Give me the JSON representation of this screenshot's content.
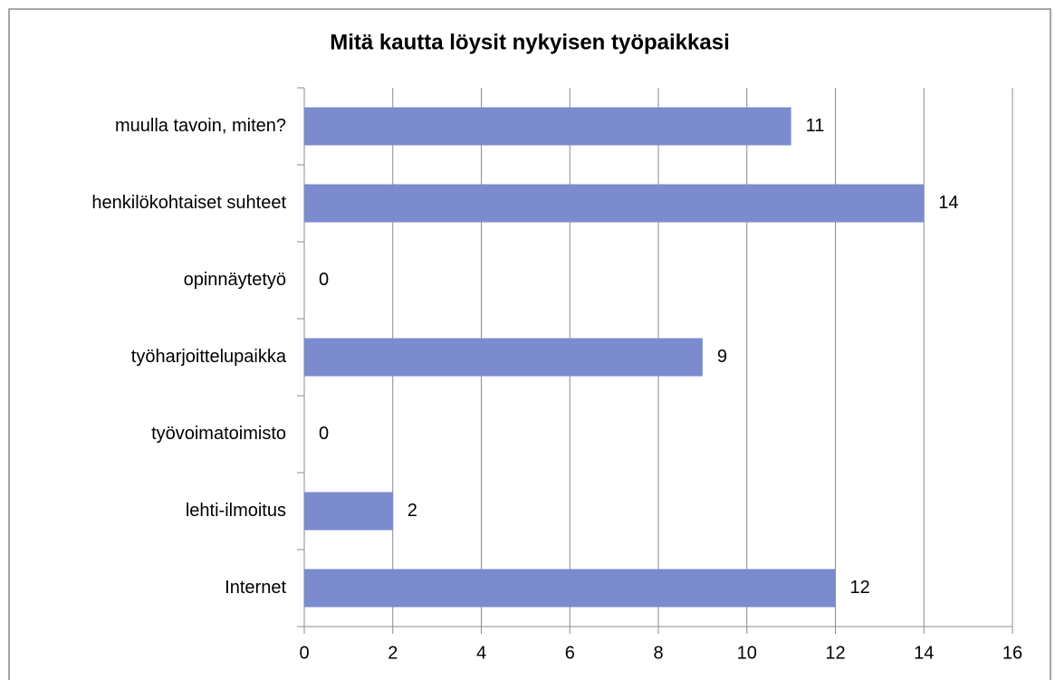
{
  "chart_data": {
    "type": "barh",
    "title": "Mitä kautta löysit nykyisen työpaikkasi",
    "categories": [
      "muulla tavoin, miten?",
      "henkilökohtaiset suhteet",
      "opinnäytetyö",
      "työharjoittelupaikka",
      "työvoimatoimisto",
      "lehti-ilmoitus",
      "Internet"
    ],
    "values": [
      11,
      14,
      0,
      9,
      0,
      2,
      12
    ],
    "color": "#7b8bcd",
    "xlim": [
      0,
      16
    ],
    "xticks": [
      0,
      2,
      4,
      6,
      8,
      10,
      12,
      14,
      16
    ],
    "grid": true
  }
}
